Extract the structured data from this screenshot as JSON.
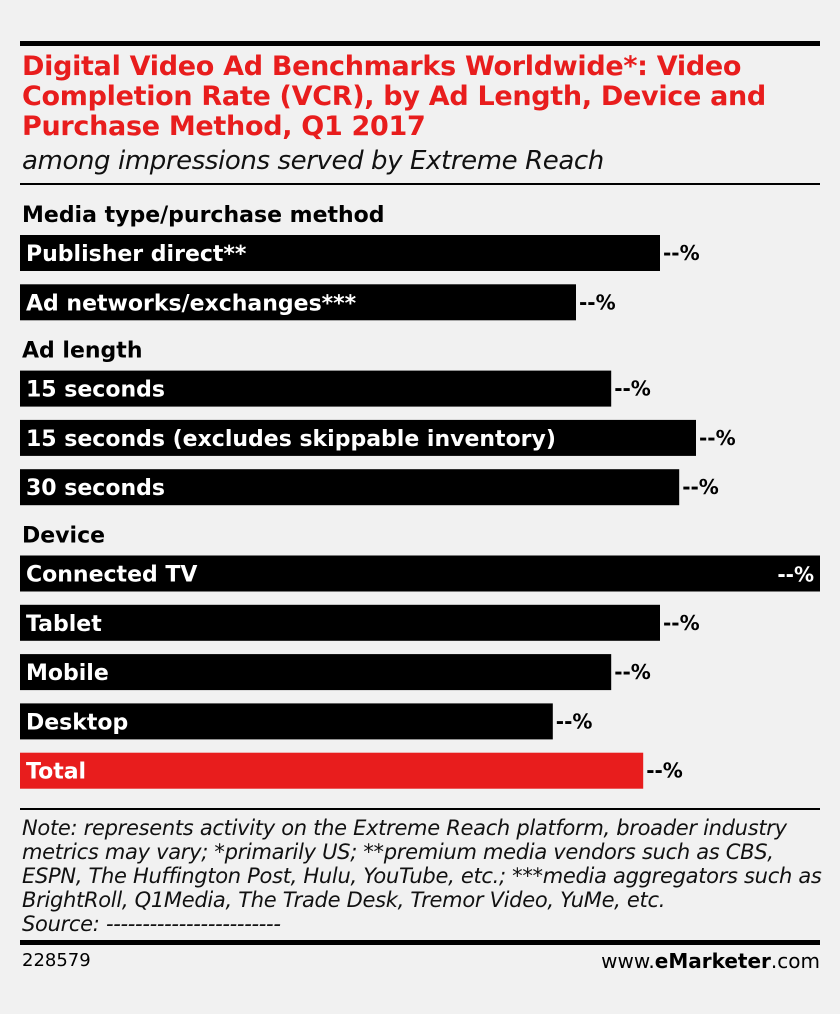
{
  "header": {
    "title": "Digital Video Ad Benchmarks Worldwide*: Video Completion Rate (VCR), by Ad Length, Device and Purchase Method, Q1 2017",
    "subtitle": "among impressions served by Extreme Reach"
  },
  "colors": {
    "bar": "#000000",
    "highlight": "#e81d1d",
    "title": "#e81d1d",
    "background": "#f1f1f1"
  },
  "chart_data": {
    "type": "bar",
    "orientation": "horizontal",
    "value_unit": "%",
    "value_labels_shown": "--%",
    "relative_scale_max": 100,
    "groups": [
      {
        "label": "Media type/purchase method",
        "items": [
          {
            "label": "Publisher direct**",
            "value_label": "--%",
            "relative_length": 80,
            "highlight": false
          },
          {
            "label": "Ad networks/exchanges***",
            "value_label": "--%",
            "relative_length": 69.5,
            "highlight": false
          }
        ]
      },
      {
        "label": "Ad length",
        "items": [
          {
            "label": "15 seconds",
            "value_label": "--%",
            "relative_length": 73.9,
            "highlight": false
          },
          {
            "label": "15 seconds (excludes skippable inventory)",
            "value_label": "--%",
            "relative_length": 84.5,
            "highlight": false
          },
          {
            "label": "30 seconds",
            "value_label": "--%",
            "relative_length": 82.4,
            "highlight": false
          }
        ]
      },
      {
        "label": "Device",
        "items": [
          {
            "label": "Connected TV",
            "value_label": "--%",
            "relative_length": 100,
            "highlight": false
          },
          {
            "label": "Tablet",
            "value_label": "--%",
            "relative_length": 80,
            "highlight": false
          },
          {
            "label": "Mobile",
            "value_label": "--%",
            "relative_length": 73.9,
            "highlight": false
          },
          {
            "label": "Desktop",
            "value_label": "--%",
            "relative_length": 66.6,
            "highlight": false
          },
          {
            "label": "Total",
            "value_label": "--%",
            "relative_length": 77.9,
            "highlight": true
          }
        ]
      }
    ]
  },
  "note": "Note: represents activity on the Extreme Reach platform, broader industry metrics may vary; *primarily US; **premium media vendors such as CBS, ESPN, The Huffington Post, Hulu, YouTube, etc.; ***media aggregators such as BrightRoll, Q1Media, The Trade Desk, Tremor Video, YuMe, etc.",
  "source": "Source: ------------------------",
  "footer": {
    "chart_id": "228579",
    "brand_prefix": "www.",
    "brand_bold": "eMarketer",
    "brand_suffix": ".com"
  }
}
